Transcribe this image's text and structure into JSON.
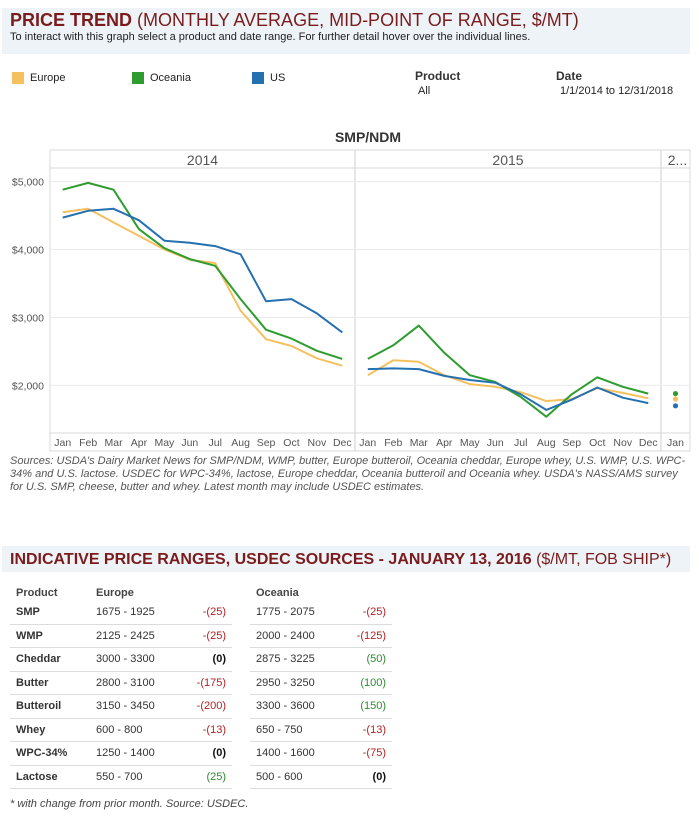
{
  "header": {
    "title_strong": "PRICE TREND",
    "title_rest": "(MONTHLY AVERAGE, MID-POINT OF RANGE, $/MT)",
    "subtitle": "To interact with this graph select a product and date range. For further detail hover over the individual lines."
  },
  "legend": [
    {
      "name": "Europe",
      "color": "#f5c060"
    },
    {
      "name": "Oceania",
      "color": "#2e9c2e"
    },
    {
      "name": "US",
      "color": "#2571b0"
    }
  ],
  "filters": {
    "product_label": "Product",
    "product_value": "All",
    "date_label": "Date",
    "date_value": "1/1/2014 to 12/31/2018"
  },
  "chart_data": {
    "type": "line",
    "title": "SMP/NDM",
    "year_headers": [
      "2014",
      "2015",
      "2..."
    ],
    "months": [
      "Jan",
      "Feb",
      "Mar",
      "Apr",
      "May",
      "Jun",
      "Jul",
      "Aug",
      "Sep",
      "Oct",
      "Nov",
      "Dec"
    ],
    "tail_month": "Jan",
    "y_ticks": [
      {
        "value": 2000,
        "label": "$2,000"
      },
      {
        "value": 3000,
        "label": "$3,000"
      },
      {
        "value": 4000,
        "label": "$4,000"
      },
      {
        "value": 5000,
        "label": "$5,000"
      }
    ],
    "ylim": [
      1300,
      5200
    ],
    "series": [
      {
        "name": "Europe",
        "color": "#f5c060",
        "y2014": [
          4550,
          4600,
          4400,
          4200,
          4000,
          3850,
          3800,
          3100,
          2680,
          2580,
          2400,
          2290
        ],
        "y2015": [
          2150,
          2370,
          2350,
          2150,
          2020,
          1980,
          1900,
          1770,
          1800,
          1960,
          1890,
          1810
        ],
        "y2016": [
          1800
        ]
      },
      {
        "name": "Oceania",
        "color": "#2e9c2e",
        "y2014": [
          4880,
          4980,
          4880,
          4300,
          4020,
          3860,
          3760,
          3270,
          2820,
          2690,
          2510,
          2390
        ],
        "y2015": [
          2390,
          2590,
          2880,
          2480,
          2150,
          2050,
          1830,
          1540,
          1870,
          2120,
          1980,
          1880
        ],
        "y2016": [
          1880
        ]
      },
      {
        "name": "US",
        "color": "#2571b0",
        "y2014": [
          4470,
          4570,
          4600,
          4430,
          4130,
          4100,
          4050,
          3930,
          3240,
          3270,
          3060,
          2780
        ],
        "y2015": [
          2240,
          2250,
          2240,
          2140,
          2080,
          2040,
          1870,
          1640,
          1790,
          1970,
          1820,
          1740
        ],
        "y2016": [
          1700
        ]
      }
    ]
  },
  "sources": "Sources: USDA's Dairy Market News for SMP/NDM, WMP, butter, Europe butteroil, Oceania cheddar, Europe whey, U.S. WMP, U.S. WPC-34% and U.S. lactose. USDEC for WPC-34%, lactose, Europe cheddar, Oceania butteroil and Oceania whey. USDA's NASS/AMS survey for U.S. SMP, cheese, butter and whey. Latest month may include USDEC estimates.",
  "section2": {
    "title_strong": "INDICATIVE PRICE RANGES, USDEC SOURCES - JANUARY 13, 2016",
    "title_rest": "($/MT, FOB SHIP*)"
  },
  "table": {
    "headers": [
      "Product",
      "Europe",
      "Oceania"
    ],
    "rows": [
      {
        "product": "SMP",
        "eu_range": "1675 - 1925",
        "eu_change": "-(25)",
        "oc_range": "1775 - 2075",
        "oc_change": "-(25)"
      },
      {
        "product": "WMP",
        "eu_range": "2125 - 2425",
        "eu_change": "-(25)",
        "oc_range": "2000 - 2400",
        "oc_change": "-(125)"
      },
      {
        "product": "Cheddar",
        "eu_range": "3000 - 3300",
        "eu_change": "(0)",
        "oc_range": "2875 - 3225",
        "oc_change": "(50)"
      },
      {
        "product": "Butter",
        "eu_range": "2800 - 3100",
        "eu_change": "-(175)",
        "oc_range": "2950 - 3250",
        "oc_change": "(100)"
      },
      {
        "product": "Butteroil",
        "eu_range": "3150 - 3450",
        "eu_change": "-(200)",
        "oc_range": "3300 - 3600",
        "oc_change": "(150)"
      },
      {
        "product": "Whey",
        "eu_range": "600 - 800",
        "eu_change": "-(13)",
        "oc_range": "650 - 750",
        "oc_change": "-(13)"
      },
      {
        "product": "WPC-34%",
        "eu_range": "1250 - 1400",
        "eu_change": "(0)",
        "oc_range": "1400 - 1600",
        "oc_change": "-(75)"
      },
      {
        "product": "Lactose",
        "eu_range": "550 - 700",
        "eu_change": "(25)",
        "oc_range": "500 - 600",
        "oc_change": "(0)"
      }
    ]
  },
  "footnote": "* with change from prior month.    Source: USDEC."
}
